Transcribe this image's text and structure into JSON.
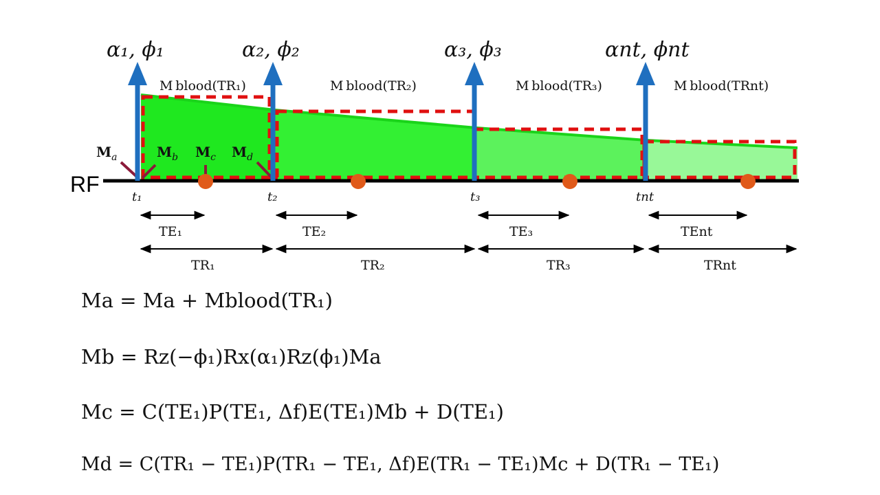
{
  "rf_label": "RF",
  "pulses": [
    {
      "label": "α₁, ϕ₁",
      "time": "t₁",
      "te": "TE₁",
      "tr": "TR₁",
      "blood": "M blood(TR₁)"
    },
    {
      "label": "α₂, ϕ₂",
      "time": "t₂",
      "te": "TE₂",
      "tr": "TR₂",
      "blood": "M blood(TR₂)"
    },
    {
      "label": "α₃, ϕ₃",
      "time": "t₃",
      "te": "TE₃",
      "tr": "TR₃",
      "blood": "M blood(TR₃)"
    },
    {
      "label": "αnt, ϕnt",
      "time": "tnt",
      "te": "TEnt",
      "tr": "TRnt",
      "blood": "M blood(TRnt)"
    }
  ],
  "points": {
    "a": "Ma",
    "b": "Mb",
    "c": "Mc",
    "d": "Md"
  },
  "equations": [
    "Ma = Ma + Mblood(TR₁)",
    "Mb = Rz(−ϕ₁)Rx(α₁)Rz(ϕ₁)Ma",
    "Mc = C(TE₁)P(TE₁, Δf)E(TE₁)Mb + D(TE₁)",
    "Md = C(TR₁ − TE₁)P(TR₁ − TE₁, Δf)E(TR₁ − TE₁)Mc + D(TR₁ − TE₁)"
  ],
  "colors": {
    "pulse": "#1f6fbf",
    "box": "#e01010",
    "fill1": "#1fe81f",
    "fill2": "#33f033",
    "fill3": "#5cf25c",
    "fill4": "#98f898",
    "dot": "#e05a1a",
    "marker": "#8b1a3a"
  }
}
